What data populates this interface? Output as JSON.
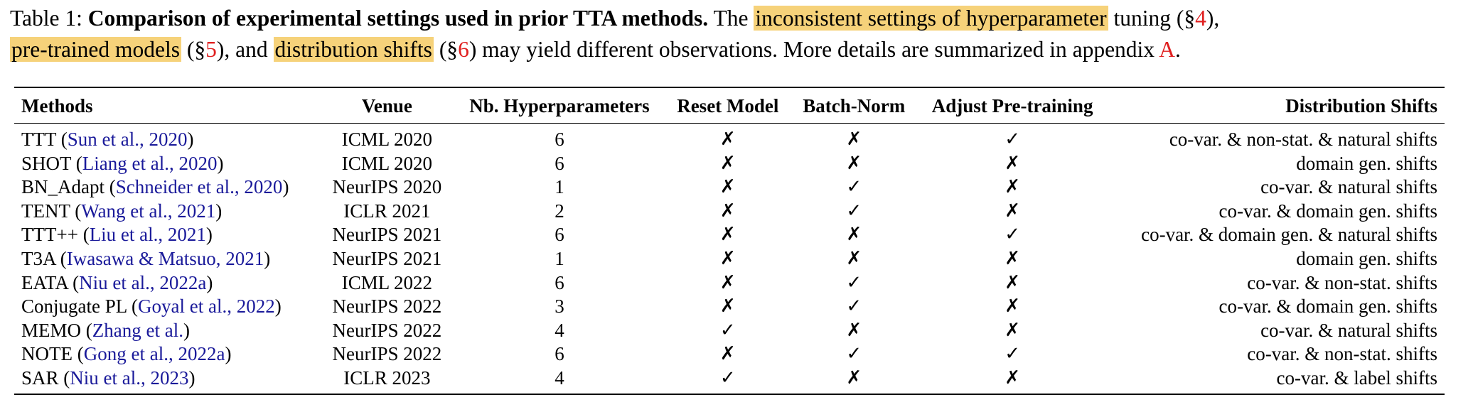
{
  "caption": {
    "prefix": "Table 1: ",
    "bold": "Comparison of experimental settings used in prior TTA methods.",
    "text1": " The ",
    "hl1": "inconsistent settings of hyperparameter",
    "text2": " tuning (§",
    "ref1": "4",
    "text3": "),",
    "hl2": "pre-trained models",
    "text4": " (§",
    "ref2": "5",
    "text5": "), and ",
    "hl3": "distribution shifts",
    "text6": " (§",
    "ref3": "6",
    "text7": ") may yield different observations. More details are summarized in appendix ",
    "ref4": "A",
    "text8": "."
  },
  "table": {
    "headers": [
      "Methods",
      "Venue",
      "Nb. Hyperparameters",
      "Reset Model",
      "Batch-Norm",
      "Adjust Pre-training",
      "Distribution Shifts"
    ],
    "rows": [
      {
        "method": "TTT",
        "cite": "Sun et al., 2020",
        "venue": "ICML 2020",
        "nb": "6",
        "reset": "✗",
        "bn": "✗",
        "adjust": "✓",
        "shifts": "co-var. & non-stat. & natural shifts"
      },
      {
        "method": "SHOT",
        "cite": "Liang et al., 2020",
        "venue": "ICML 2020",
        "nb": "6",
        "reset": "✗",
        "bn": "✗",
        "adjust": "✗",
        "shifts": "domain gen. shifts"
      },
      {
        "method": "BN_Adapt",
        "cite": "Schneider et al., 2020",
        "venue": "NeurIPS 2020",
        "nb": "1",
        "reset": "✗",
        "bn": "✓",
        "adjust": "✗",
        "shifts": "co-var. & natural shifts"
      },
      {
        "method": "TENT",
        "cite": "Wang et al., 2021",
        "venue": "ICLR 2021",
        "nb": "2",
        "reset": "✗",
        "bn": "✓",
        "adjust": "✗",
        "shifts": "co-var. & domain gen. shifts"
      },
      {
        "method": "TTT++",
        "cite": "Liu et al., 2021",
        "venue": "NeurIPS 2021",
        "nb": "6",
        "reset": "✗",
        "bn": "✗",
        "adjust": "✓",
        "shifts": "co-var. & domain gen. & natural shifts"
      },
      {
        "method": "T3A",
        "cite": "Iwasawa & Matsuo, 2021",
        "venue": "NeurIPS 2021",
        "nb": "1",
        "reset": "✗",
        "bn": "✗",
        "adjust": "✗",
        "shifts": "domain gen. shifts"
      },
      {
        "method": "EATA",
        "cite": "Niu et al., 2022a",
        "venue": "ICML 2022",
        "nb": "6",
        "reset": "✗",
        "bn": "✓",
        "adjust": "✗",
        "shifts": "co-var. & non-stat. shifts"
      },
      {
        "method": "Conjugate PL",
        "cite": "Goyal et al., 2022",
        "venue": "NeurIPS 2022",
        "nb": "3",
        "reset": "✗",
        "bn": "✓",
        "adjust": "✗",
        "shifts": "co-var. & domain gen. shifts"
      },
      {
        "method": "MEMO",
        "cite": "Zhang et al.",
        "venue": "NeurIPS 2022",
        "nb": "4",
        "reset": "✓",
        "bn": "✗",
        "adjust": "✗",
        "shifts": "co-var. & natural shifts"
      },
      {
        "method": "NOTE",
        "cite": "Gong et al., 2022a",
        "venue": "NeurIPS 2022",
        "nb": "6",
        "reset": "✗",
        "bn": "✓",
        "adjust": "✓",
        "shifts": "co-var. & non-stat. shifts"
      },
      {
        "method": "SAR",
        "cite": "Niu et al., 2023",
        "venue": "ICLR 2023",
        "nb": "4",
        "reset": "✓",
        "bn": "✗",
        "adjust": "✗",
        "shifts": "co-var. & label shifts"
      }
    ]
  },
  "colors": {
    "highlight": "#f6d27a",
    "ref_red": "#e02020",
    "cite_blue": "#1a1a9a"
  }
}
